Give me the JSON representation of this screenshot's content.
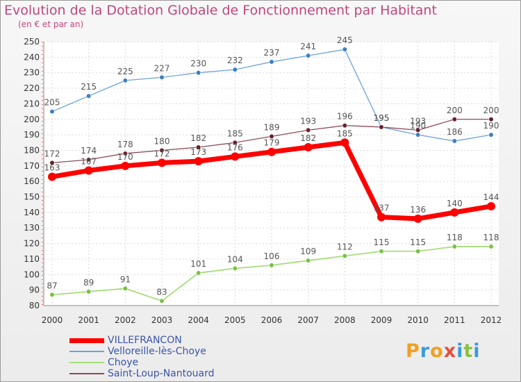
{
  "header": {
    "title": "Evolution de la Dotation Globale de Fonctionnement par Habitant",
    "subtitle": "(en € et par an)"
  },
  "logo": {
    "text": "Proxiti",
    "letters": [
      {
        "char": "P",
        "color": "#f0a020"
      },
      {
        "char": "r",
        "color": "#3a9ad8"
      },
      {
        "char": "o",
        "color": "#f0a020"
      },
      {
        "char": "x",
        "color": "#e05040"
      },
      {
        "char": "i",
        "color": "#3a9ad8"
      },
      {
        "char": "t",
        "color": "#8cc040"
      },
      {
        "char": "i",
        "color": "#3a9ad8"
      }
    ]
  },
  "chart_data": {
    "type": "line",
    "title": "Evolution de la Dotation Globale de Fonctionnement par Habitant",
    "subtitle": "(en € et par an)",
    "xlabel": "",
    "ylabel": "",
    "x": [
      "2000",
      "2001",
      "2002",
      "2003",
      "2004",
      "2005",
      "2006",
      "2007",
      "2008",
      "2009",
      "2010",
      "2011",
      "2012"
    ],
    "ylim": [
      80,
      250
    ],
    "yticks": [
      80,
      90,
      100,
      110,
      120,
      130,
      140,
      150,
      160,
      170,
      180,
      190,
      200,
      210,
      220,
      230,
      240,
      250
    ],
    "grid": true,
    "legend_position": "bottom-left",
    "series": [
      {
        "name": "Velloreille-lès-Choye",
        "color": "#6ba3d6",
        "marker": "#3d7fc4",
        "values": [
          205,
          215,
          225,
          227,
          230,
          232,
          237,
          241,
          245,
          195,
          190,
          186,
          190
        ]
      },
      {
        "name": "Choye",
        "color": "#a6dd7a",
        "marker": "#7ac143",
        "values": [
          87,
          89,
          91,
          83,
          101,
          104,
          106,
          109,
          112,
          115,
          115,
          118,
          118
        ]
      },
      {
        "name": "Saint-Loup-Nantouard",
        "color": "#8b4a56",
        "marker": "#6b1f2c",
        "values": [
          172,
          174,
          178,
          180,
          182,
          185,
          189,
          193,
          196,
          195,
          193,
          200,
          200
        ]
      },
      {
        "name": "VILLEFRANCON",
        "color": "#ff0000",
        "marker": "#ff0000",
        "values": [
          163,
          167,
          170,
          172,
          173,
          176,
          179,
          182,
          185,
          137,
          136,
          140,
          144
        ]
      }
    ],
    "legend_order": [
      "VILLEFRANCON",
      "Velloreille-lès-Choye",
      "Choye",
      "Saint-Loup-Nantouard"
    ]
  }
}
